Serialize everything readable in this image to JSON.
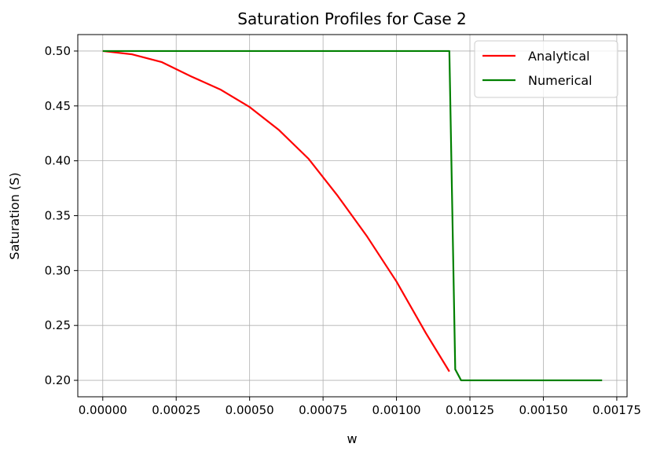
{
  "chart_data": {
    "type": "line",
    "title": "Saturation Profiles for Case 2",
    "xlabel": "w",
    "ylabel": "Saturation (S)",
    "xlim": [
      -8.5e-05,
      0.001785
    ],
    "ylim": [
      0.185,
      0.515
    ],
    "xticks": [
      0.0,
      0.00025,
      0.0005,
      0.00075,
      0.001,
      0.00125,
      0.0015,
      0.00175
    ],
    "xtick_labels": [
      "0.00000",
      "0.00025",
      "0.00050",
      "0.00075",
      "0.00100",
      "0.00125",
      "0.00150",
      "0.00175"
    ],
    "yticks": [
      0.2,
      0.25,
      0.3,
      0.35,
      0.4,
      0.45,
      0.5
    ],
    "ytick_labels": [
      "0.20",
      "0.25",
      "0.30",
      "0.35",
      "0.40",
      "0.45",
      "0.50"
    ],
    "grid": true,
    "legend_position": "top-right",
    "series": [
      {
        "name": "Analytical",
        "color": "#ff0000",
        "x": [
          0.0,
          0.0001,
          0.0002,
          0.0003,
          0.0004,
          0.0005,
          0.0006,
          0.0007,
          0.0008,
          0.0009,
          0.001,
          0.0011,
          0.00118
        ],
        "y": [
          0.5,
          0.497,
          0.49,
          0.477,
          0.465,
          0.449,
          0.428,
          0.402,
          0.368,
          0.331,
          0.29,
          0.243,
          0.208
        ]
      },
      {
        "name": "Numerical",
        "color": "#008000",
        "x": [
          0.0,
          0.00118,
          0.0012,
          0.00122,
          0.00124,
          0.0017
        ],
        "y": [
          0.5,
          0.5,
          0.21,
          0.2,
          0.2,
          0.2
        ]
      }
    ]
  }
}
